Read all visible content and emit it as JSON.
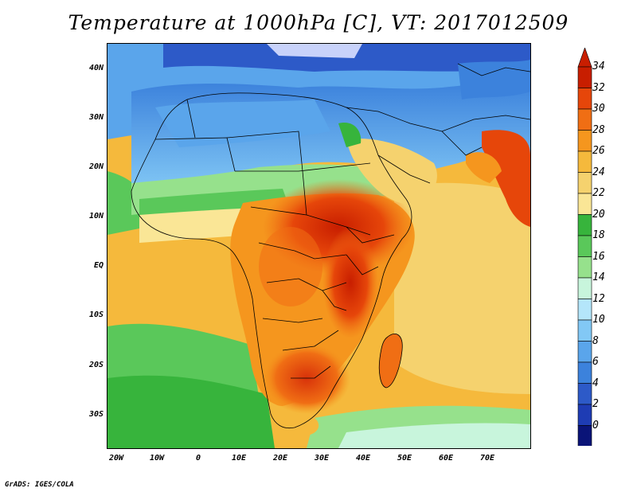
{
  "title": "Temperature at 1000hPa [C], VT: 2017012509",
  "credit": "GrADS: IGES/COLA",
  "lat_labels": [
    "40N",
    "30N",
    "20N",
    "10N",
    "EQ",
    "10S",
    "20S",
    "30S"
  ],
  "lon_labels": [
    "20W",
    "10W",
    "0",
    "10E",
    "20E",
    "30E",
    "40E",
    "50E",
    "60E",
    "70E"
  ],
  "colorbar": {
    "labels": [
      "34",
      "32",
      "30",
      "28",
      "26",
      "24",
      "22",
      "20",
      "18",
      "16",
      "14",
      "12",
      "10",
      "8",
      "6",
      "4",
      "2",
      "0"
    ],
    "colors_top_to_bottom": [
      "#c81e00",
      "#e6460a",
      "#f06e14",
      "#f5961e",
      "#f5b93c",
      "#f5d26e",
      "#fae696",
      "#37b43c",
      "#5ac85a",
      "#96e18c",
      "#c8f5dc",
      "#b4e6fa",
      "#82c8f5",
      "#5aa5eb",
      "#3c82dc",
      "#2d5ac8",
      "#1e3cb4",
      "#0a1478"
    ],
    "upper_arrow_color": "#c81e00",
    "lower_arrow_color": "#e6e6fa"
  }
}
